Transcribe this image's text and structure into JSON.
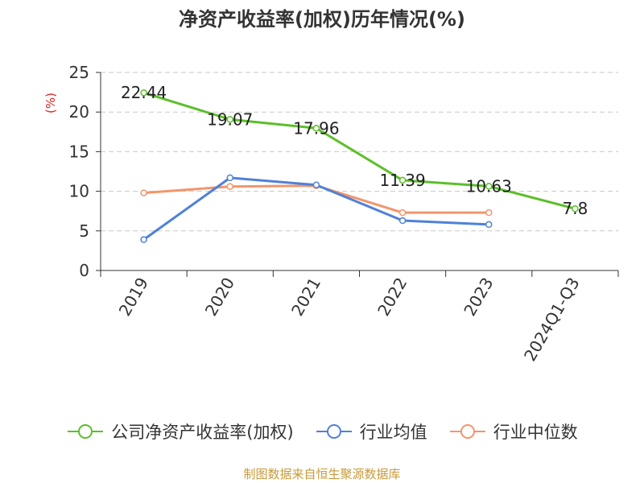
{
  "chart_data": {
    "type": "line",
    "title": "净资产收益率(加权)历年情况(%)",
    "ylabel": "(%)",
    "categories": [
      "2019",
      "2020",
      "2021",
      "2022",
      "2023",
      "2024Q1-Q3"
    ],
    "ylim": [
      0,
      25
    ],
    "yticks": [
      "0",
      "5",
      "10",
      "15",
      "20",
      "25"
    ],
    "grid": true,
    "legend_position": "bottom",
    "series": [
      {
        "name": "公司净资产收益率(加权)",
        "color": "#5cbf2a",
        "values": [
          22.44,
          19.07,
          17.96,
          11.39,
          10.63,
          7.8
        ],
        "labels": [
          "22.44",
          "19.07",
          "17.96",
          "11.39",
          "10.63",
          "7.8"
        ]
      },
      {
        "name": "行业均值",
        "color": "#4f81d8",
        "values": [
          3.9,
          11.7,
          10.8,
          6.3,
          5.8,
          null
        ]
      },
      {
        "name": "行业中位数",
        "color": "#f4956b",
        "values": [
          9.8,
          10.6,
          10.7,
          7.3,
          7.3,
          null
        ]
      }
    ]
  },
  "footer": "制图数据来自恒生聚源数据库"
}
